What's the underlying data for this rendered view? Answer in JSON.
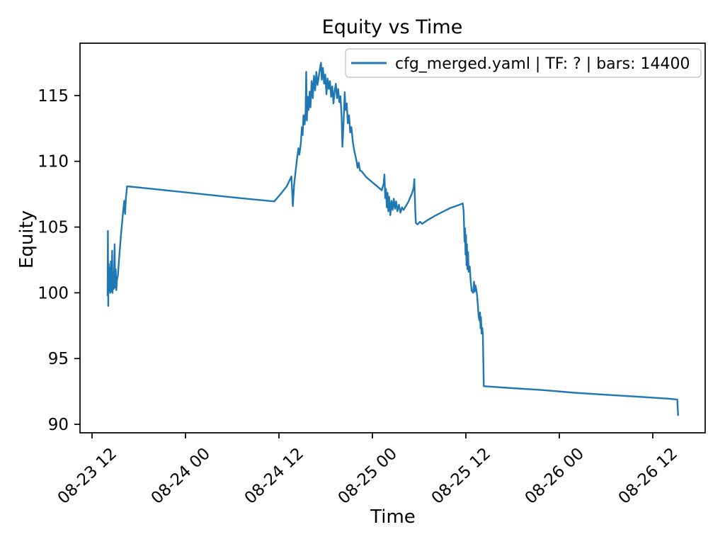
{
  "chart_data": {
    "type": "line",
    "title": "Equity vs Time",
    "xlabel": "Time",
    "ylabel": "Equity",
    "x_unit": "hours since 08-23 12:00",
    "xlim": [
      -1.545,
      78.73
    ],
    "ylim": [
      89.355,
      118.98
    ],
    "grid": false,
    "line_color": "#1f77b4",
    "background": "#ffffff",
    "legend": {
      "position": "upper right",
      "border_color": "#c8c8c8"
    },
    "y_ticks": [
      90,
      95,
      100,
      105,
      110,
      115
    ],
    "x_ticks": [
      {
        "t": 0,
        "label": "08-23 12"
      },
      {
        "t": 12,
        "label": "08-24 00"
      },
      {
        "t": 24,
        "label": "08-24 12"
      },
      {
        "t": 36,
        "label": "08-25 00"
      },
      {
        "t": 48,
        "label": "08-25 12"
      },
      {
        "t": 60,
        "label": "08-26 00"
      },
      {
        "t": 72,
        "label": "08-26 12"
      }
    ],
    "series": [
      {
        "name": "cfg_merged.yaml | TF: ? | bars: 14400",
        "points": [
          [
            2.0,
            99.8
          ],
          [
            2.04,
            104.7
          ],
          [
            2.08,
            99.0
          ],
          [
            2.14,
            102.2
          ],
          [
            2.2,
            100.2
          ],
          [
            2.27,
            101.9
          ],
          [
            2.34,
            100.0
          ],
          [
            2.42,
            102.4
          ],
          [
            2.5,
            100.1
          ],
          [
            2.58,
            103.2
          ],
          [
            2.64,
            100.0
          ],
          [
            2.72,
            101.5
          ],
          [
            2.8,
            100.3
          ],
          [
            2.9,
            103.7
          ],
          [
            2.96,
            100.4
          ],
          [
            3.05,
            101.8
          ],
          [
            3.12,
            100.2
          ],
          [
            3.2,
            101.0
          ],
          [
            3.32,
            101.3
          ],
          [
            3.5,
            102.8
          ],
          [
            3.7,
            104.3
          ],
          [
            3.9,
            105.6
          ],
          [
            4.05,
            106.5
          ],
          [
            4.15,
            107.0
          ],
          [
            4.25,
            106.0
          ],
          [
            4.35,
            107.2
          ],
          [
            4.5,
            108.1
          ],
          [
            7.0,
            107.95
          ],
          [
            11.0,
            107.7
          ],
          [
            15.0,
            107.45
          ],
          [
            19.0,
            107.2
          ],
          [
            23.4,
            106.95
          ],
          [
            24.2,
            107.5
          ],
          [
            25.0,
            108.1
          ],
          [
            25.6,
            108.85
          ],
          [
            25.72,
            107.4
          ],
          [
            25.78,
            106.6
          ],
          [
            25.95,
            108.2
          ],
          [
            26.15,
            109.3
          ],
          [
            26.35,
            110.3
          ],
          [
            26.5,
            111.0
          ],
          [
            26.62,
            110.5
          ],
          [
            26.8,
            111.3
          ],
          [
            26.95,
            112.6
          ],
          [
            27.05,
            112.0
          ],
          [
            27.15,
            113.5
          ],
          [
            27.3,
            112.8
          ],
          [
            27.42,
            113.8
          ],
          [
            27.5,
            116.8
          ],
          [
            27.58,
            113.1
          ],
          [
            27.7,
            114.9
          ],
          [
            27.8,
            113.9
          ],
          [
            27.95,
            115.3
          ],
          [
            28.05,
            114.1
          ],
          [
            28.2,
            116.1
          ],
          [
            28.35,
            114.8
          ],
          [
            28.5,
            116.5
          ],
          [
            28.65,
            115.4
          ],
          [
            28.8,
            116.8
          ],
          [
            28.95,
            115.8
          ],
          [
            29.1,
            116.4
          ],
          [
            29.25,
            117.0
          ],
          [
            29.4,
            117.5
          ],
          [
            29.5,
            116.2
          ],
          [
            29.65,
            117.1
          ],
          [
            29.8,
            115.9
          ],
          [
            29.95,
            116.6
          ],
          [
            30.1,
            115.1
          ],
          [
            30.25,
            116.3
          ],
          [
            30.4,
            115.5
          ],
          [
            30.55,
            116.1
          ],
          [
            30.7,
            114.9
          ],
          [
            30.85,
            115.7
          ],
          [
            31.0,
            114.4
          ],
          [
            31.15,
            115.3
          ],
          [
            31.3,
            115.9
          ],
          [
            31.45,
            114.8
          ],
          [
            31.6,
            115.5
          ],
          [
            31.75,
            114.5
          ],
          [
            31.9,
            114.95
          ],
          [
            32.05,
            113.4
          ],
          [
            32.15,
            111.1
          ],
          [
            32.3,
            113.0
          ],
          [
            32.45,
            115.25
          ],
          [
            32.55,
            113.9
          ],
          [
            32.7,
            114.4
          ],
          [
            32.85,
            112.9
          ],
          [
            33.0,
            113.5
          ],
          [
            33.15,
            112.2
          ],
          [
            33.3,
            112.6
          ],
          [
            33.5,
            111.4
          ],
          [
            33.7,
            110.7
          ],
          [
            33.9,
            110.2
          ],
          [
            34.1,
            109.5
          ],
          [
            34.25,
            109.9
          ],
          [
            34.4,
            109.3
          ],
          [
            34.6,
            109.25
          ],
          [
            35.2,
            108.8
          ],
          [
            36.2,
            108.3
          ],
          [
            37.2,
            107.8
          ],
          [
            37.45,
            108.3
          ],
          [
            37.55,
            109.0
          ],
          [
            37.65,
            107.2
          ],
          [
            37.75,
            107.9
          ],
          [
            37.85,
            106.5
          ],
          [
            37.95,
            107.6
          ],
          [
            38.05,
            106.2
          ],
          [
            38.15,
            107.3
          ],
          [
            38.3,
            105.9
          ],
          [
            38.45,
            107.0
          ],
          [
            38.6,
            106.3
          ],
          [
            38.75,
            107.15
          ],
          [
            38.9,
            106.4
          ],
          [
            39.05,
            106.95
          ],
          [
            39.2,
            106.2
          ],
          [
            39.4,
            106.7
          ],
          [
            39.6,
            106.1
          ],
          [
            39.8,
            106.5
          ],
          [
            40.0,
            106.3
          ],
          [
            40.6,
            106.9
          ],
          [
            41.1,
            107.6
          ],
          [
            41.3,
            108.0
          ],
          [
            41.38,
            108.65
          ],
          [
            41.5,
            106.3
          ],
          [
            41.58,
            105.3
          ],
          [
            41.8,
            105.2
          ],
          [
            42.1,
            105.4
          ],
          [
            42.4,
            105.25
          ],
          [
            43.0,
            105.5
          ],
          [
            44.0,
            105.85
          ],
          [
            45.0,
            106.15
          ],
          [
            46.0,
            106.45
          ],
          [
            47.0,
            106.65
          ],
          [
            47.6,
            106.8
          ],
          [
            47.72,
            106.2
          ],
          [
            47.78,
            104.8
          ],
          [
            47.84,
            103.9
          ],
          [
            47.9,
            104.9
          ],
          [
            47.96,
            102.9
          ],
          [
            48.02,
            104.4
          ],
          [
            48.08,
            102.1
          ],
          [
            48.14,
            103.7
          ],
          [
            48.2,
            101.8
          ],
          [
            48.28,
            103.1
          ],
          [
            48.36,
            101.6
          ],
          [
            48.5,
            102.0
          ],
          [
            48.62,
            100.9
          ],
          [
            48.75,
            100.15
          ],
          [
            48.95,
            100.0
          ],
          [
            49.05,
            100.85
          ],
          [
            49.15,
            100.1
          ],
          [
            49.25,
            100.55
          ],
          [
            49.35,
            100.2
          ],
          [
            49.45,
            99.8
          ],
          [
            49.55,
            99.0
          ],
          [
            49.65,
            98.2
          ],
          [
            49.75,
            97.9
          ],
          [
            49.82,
            98.5
          ],
          [
            49.88,
            97.3
          ],
          [
            49.94,
            98.15
          ],
          [
            50.02,
            96.9
          ],
          [
            50.1,
            97.35
          ],
          [
            50.18,
            96.85
          ],
          [
            50.3,
            92.9
          ],
          [
            54.0,
            92.75
          ],
          [
            58.0,
            92.6
          ],
          [
            62.0,
            92.4
          ],
          [
            66.0,
            92.25
          ],
          [
            70.0,
            92.1
          ],
          [
            74.0,
            91.95
          ],
          [
            75.15,
            91.88
          ],
          [
            75.25,
            90.7
          ]
        ]
      }
    ]
  }
}
